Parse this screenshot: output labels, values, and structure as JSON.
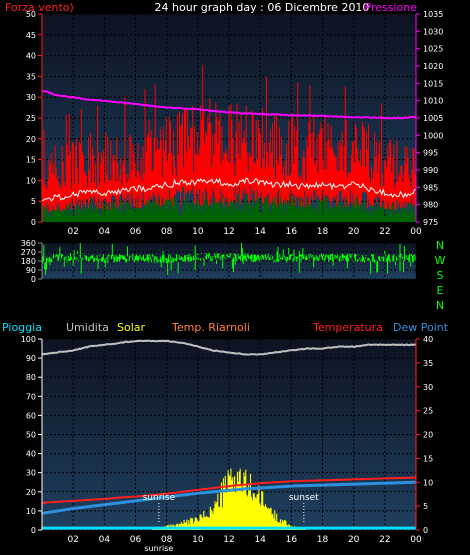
{
  "header": {
    "left_label": "Forza vento)",
    "title": "24 hour graph day : 06 Dicembre 2010",
    "right_label": "Pressione"
  },
  "labels": {
    "pioggia": "Pioggia",
    "umidita": "Umidita",
    "solar": "Solar",
    "temp_riarnoli": "Temp. Riarnoli",
    "temperatura": "Temperatura",
    "dew_point": "Dew Point",
    "sunrise": "sunrise",
    "sunset": "sunset",
    "compass": [
      "N",
      "W",
      "S",
      "E",
      "N"
    ]
  },
  "colors": {
    "plot_top": "#0d1220",
    "plot_bottom": "#1f4060",
    "grid": "#000000",
    "wind_gust": "#ff0000",
    "wind_avg": "#ffffff",
    "wind_base": "#006400",
    "pressure": "#ff00ff",
    "direction": "#00ff00",
    "humidity": "#c0c0c0",
    "solar": "#ffff00",
    "temp_riarnoli": "#ff8040",
    "temperature": "#ff2020",
    "dew_point": "#3090e0",
    "rain": "#00e0ff",
    "text_red": "#ff2020",
    "text_magenta": "#ff00ff",
    "text_white": "#ffffff",
    "text_green": "#00ff00"
  },
  "chart_data": [
    {
      "type": "line",
      "x_ticks": [
        "02",
        "04",
        "06",
        "08",
        "10",
        "12",
        "14",
        "16",
        "18",
        "20",
        "22",
        "00"
      ],
      "y_left": {
        "ticks": [
          0,
          5,
          10,
          15,
          20,
          25,
          30,
          35,
          40,
          45,
          50
        ],
        "range": [
          0,
          50
        ]
      },
      "y_right": {
        "ticks": [
          975,
          980,
          985,
          990,
          995,
          1000,
          1005,
          1010,
          1015,
          1020,
          1025,
          1030,
          1035
        ],
        "range": [
          975,
          1035
        ]
      },
      "series": [
        {
          "name": "Pressione",
          "axis": "right",
          "x": [
            0,
            1,
            2,
            3,
            4,
            5,
            6,
            7,
            8,
            9,
            10,
            11,
            12,
            13,
            14,
            15,
            16,
            17,
            18,
            19,
            20,
            21,
            22,
            23,
            24
          ],
          "values": [
            1013,
            1011.5,
            1011,
            1010.3,
            1010,
            1009.5,
            1009,
            1008.5,
            1008.1,
            1007.8,
            1007.5,
            1007,
            1006.6,
            1006.3,
            1006.2,
            1006,
            1005.8,
            1005.7,
            1005.6,
            1005.4,
            1005.2,
            1005.2,
            1005,
            1005,
            1005.3
          ]
        },
        {
          "name": "",
          "axis": "left",
          "x": [
            0,
            1,
            2,
            3,
            4,
            5,
            6,
            7,
            8,
            9,
            10,
            11,
            12,
            13,
            14,
            15,
            16,
            17,
            18,
            19,
            20,
            21,
            22,
            23,
            24
          ],
          "values": [
            5,
            6,
            6.5,
            7.5,
            7,
            7.5,
            8,
            8,
            9,
            9.5,
            9.5,
            10,
            9,
            10,
            9.5,
            9,
            9,
            8.5,
            9,
            8.5,
            9,
            8,
            7,
            6.5,
            7
          ]
        },
        {
          "name": "",
          "axis": "left",
          "x": [
            0,
            1,
            2,
            3,
            4,
            5,
            6,
            7,
            8,
            9,
            10,
            11,
            12,
            13,
            14,
            15,
            16,
            17,
            18,
            19,
            20,
            21,
            22,
            23,
            24
          ],
          "values": [
            14,
            16,
            17,
            18,
            18,
            19,
            20,
            21,
            22,
            24,
            24,
            25,
            24,
            24,
            23,
            22,
            22,
            21,
            22,
            21,
            21,
            20,
            18,
            16,
            17
          ]
        },
        {
          "name": "",
          "axis": "left",
          "x": [
            0,
            1,
            2,
            3,
            4,
            5,
            6,
            7,
            8,
            9,
            10,
            11,
            12,
            13,
            14,
            15,
            16,
            17,
            18,
            19,
            20,
            21,
            22,
            23,
            24
          ],
          "values": [
            3,
            3,
            3.5,
            4,
            4,
            4,
            4.5,
            4.5,
            5,
            5,
            5,
            5.5,
            5,
            5,
            5,
            5,
            5,
            4.5,
            5,
            4.5,
            4.5,
            4,
            3.5,
            3.5,
            3.5
          ]
        }
      ]
    },
    {
      "type": "scatter",
      "x_ticks": [
        "02",
        "04",
        "06",
        "08",
        "10",
        "12",
        "14",
        "16",
        "18",
        "20",
        "22",
        "00"
      ],
      "y_left": {
        "ticks": [
          0,
          90,
          180,
          270,
          360
        ],
        "range": [
          0,
          360
        ]
      },
      "series": [
        {
          "name": "",
          "x": [
            0,
            2,
            4,
            6,
            8,
            10,
            12,
            14,
            16,
            18,
            20,
            22,
            24
          ],
          "values": [
            200,
            215,
            205,
            210,
            200,
            215,
            220,
            210,
            205,
            215,
            210,
            205,
            210
          ]
        }
      ]
    },
    {
      "type": "line",
      "x_ticks": [
        "02",
        "04",
        "06",
        "08",
        "10",
        "12",
        "14",
        "16",
        "18",
        "20",
        "22",
        "00"
      ],
      "y_left": {
        "ticks": [
          0,
          10,
          20,
          30,
          40,
          50,
          60,
          70,
          80,
          90,
          100
        ],
        "range": [
          0,
          100
        ]
      },
      "y_right": {
        "ticks": [
          0,
          5,
          10,
          15,
          20,
          25,
          30,
          35,
          40
        ],
        "range": [
          0,
          40
        ]
      },
      "series": [
        {
          "name": "Umidita",
          "axis": "left",
          "x": [
            0,
            1,
            2,
            3,
            4,
            5,
            6,
            7,
            8,
            9,
            10,
            11,
            12,
            13,
            14,
            15,
            16,
            17,
            18,
            19,
            20,
            21,
            22,
            23,
            24
          ],
          "values": [
            92,
            93,
            94,
            96,
            97,
            98,
            99,
            99,
            99,
            98,
            96,
            94,
            93,
            92,
            92,
            93,
            94,
            95,
            95,
            96,
            96,
            97,
            97,
            97,
            97
          ]
        },
        {
          "name": "Temperatura",
          "axis": "right",
          "x": [
            0,
            1,
            2,
            3,
            4,
            5,
            6,
            7,
            8,
            9,
            10,
            11,
            12,
            13,
            14,
            15,
            16,
            17,
            18,
            19,
            20,
            21,
            22,
            23,
            24
          ],
          "values": [
            5.7,
            5.9,
            6.1,
            6.3,
            6.5,
            6.8,
            7.0,
            7.3,
            7.6,
            8.0,
            8.4,
            8.8,
            9.2,
            9.5,
            9.8,
            10.0,
            10.2,
            10.3,
            10.4,
            10.5,
            10.6,
            10.7,
            10.8,
            10.9,
            11.0
          ]
        },
        {
          "name": "Dew Point",
          "axis": "right",
          "x": [
            0,
            1,
            2,
            3,
            4,
            5,
            6,
            7,
            8,
            9,
            10,
            11,
            12,
            13,
            14,
            15,
            16,
            17,
            18,
            19,
            20,
            21,
            22,
            23,
            24
          ],
          "values": [
            3.5,
            4.0,
            4.5,
            4.9,
            5.3,
            5.7,
            6.1,
            6.5,
            6.9,
            7.3,
            7.7,
            8.0,
            8.3,
            8.6,
            8.8,
            9.0,
            9.2,
            9.3,
            9.4,
            9.5,
            9.6,
            9.7,
            9.8,
            9.9,
            10.0
          ]
        },
        {
          "name": "Solar",
          "axis": "left",
          "x": [
            7,
            8,
            9,
            10,
            11,
            11.5,
            12,
            12.5,
            13,
            13.5,
            14,
            15,
            16,
            17
          ],
          "values": [
            0,
            2,
            4,
            6,
            12,
            20,
            28,
            32,
            26,
            24,
            18,
            8,
            2,
            0
          ]
        },
        {
          "name": "Pioggia",
          "axis": "left",
          "x": [
            0,
            24
          ],
          "values": [
            1,
            1
          ]
        }
      ],
      "annotations": [
        {
          "text": "sunrise",
          "x": 7.5
        },
        {
          "text": "sunset",
          "x": 16.8
        }
      ]
    }
  ]
}
